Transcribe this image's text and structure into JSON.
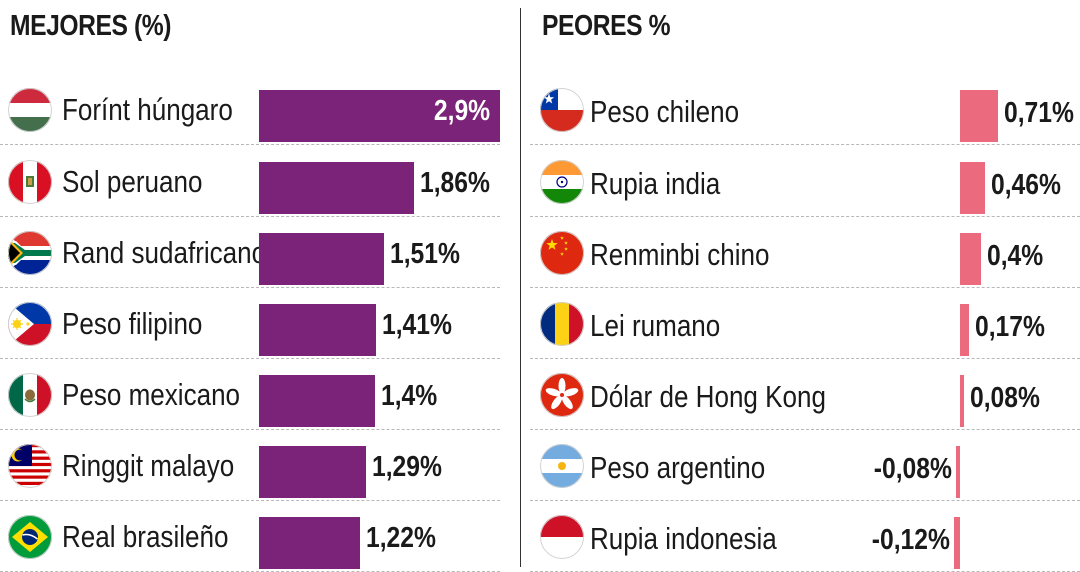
{
  "colors": {
    "best_bar": "#7a2378",
    "worst_bar": "#ec6a7d"
  },
  "chart_data": [
    {
      "type": "bar",
      "orientation": "horizontal",
      "title": "MEJORES (%)",
      "categories": [
        "Forínt húngaro",
        "Sol peruano",
        "Rand sudafricano",
        "Peso filipino",
        "Peso mexicano",
        "Ringgit malayo",
        "Real brasileño"
      ],
      "values": [
        2.9,
        1.86,
        1.51,
        1.41,
        1.4,
        1.29,
        1.22
      ],
      "value_labels": [
        "2,9%",
        "1,86%",
        "1,51%",
        "1,41%",
        "1,4%",
        "1,29%",
        "1,22%"
      ],
      "flags": [
        "hungary-flag-icon",
        "peru-flag-icon",
        "south-africa-flag-icon",
        "philippines-flag-icon",
        "mexico-flag-icon",
        "malaysia-flag-icon",
        "brazil-flag-icon"
      ],
      "xlim": [
        0,
        2.9
      ],
      "grid": false,
      "legend": "none"
    },
    {
      "type": "bar",
      "orientation": "horizontal",
      "title": "PEORES %",
      "categories": [
        "Peso chileno",
        "Rupia india",
        "Renminbi chino",
        "Lei rumano",
        "Dólar de Hong Kong",
        "Peso argentino",
        "Rupia indonesia"
      ],
      "values": [
        0.71,
        0.46,
        0.4,
        0.17,
        0.08,
        -0.08,
        -0.12
      ],
      "value_labels": [
        "0,71%",
        "0,46%",
        "0,4%",
        "0,17%",
        "0,08%",
        "-0,08%",
        "-0,12%"
      ],
      "flags": [
        "chile-flag-icon",
        "india-flag-icon",
        "china-flag-icon",
        "romania-flag-icon",
        "hong-kong-flag-icon",
        "argentina-flag-icon",
        "indonesia-flag-icon"
      ],
      "xlim": [
        -0.12,
        0.71
      ],
      "grid": false,
      "legend": "none"
    }
  ]
}
